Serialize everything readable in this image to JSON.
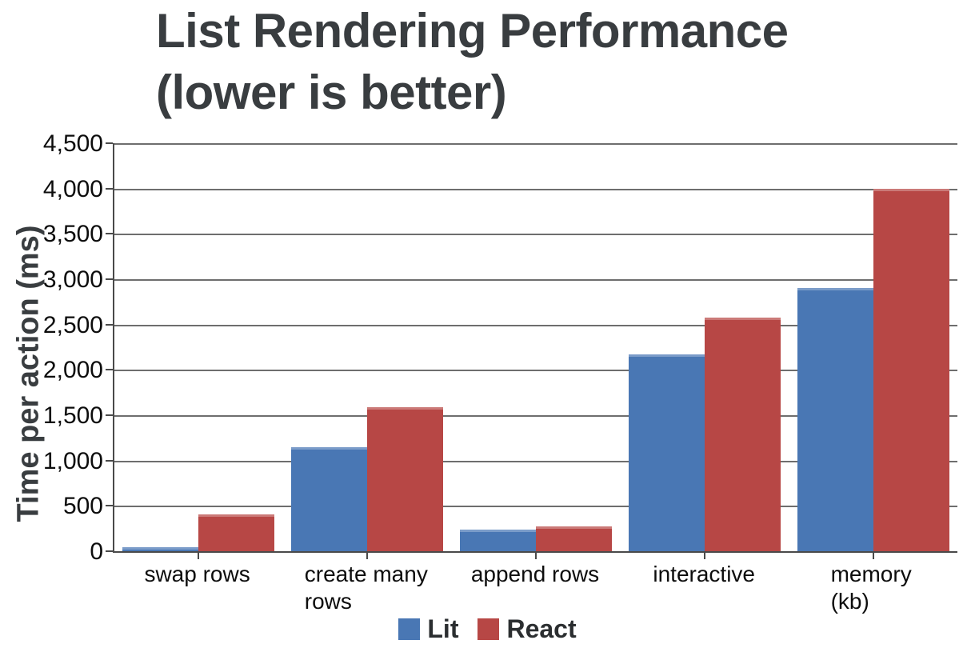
{
  "title": "List Rendering Performance\n(lower is better)",
  "chart_data": {
    "type": "bar",
    "title": "List Rendering Performance (lower is better)",
    "ylabel": "Time per action (ms)",
    "xlabel": "",
    "categories": [
      "swap rows",
      "create many\nrows",
      "append rows",
      "interactive",
      "memory (kb)"
    ],
    "series": [
      {
        "name": "Lit",
        "color": "#4977B4",
        "values": [
          45,
          1150,
          240,
          2175,
          2900
        ]
      },
      {
        "name": "React",
        "color": "#B74745",
        "values": [
          410,
          1590,
          270,
          2575,
          4000
        ]
      }
    ],
    "ylim": [
      0,
      4500
    ],
    "ytick_step": 500,
    "ytick_labels": [
      "0",
      "500",
      "1,000",
      "1,500",
      "2,000",
      "2,500",
      "3,000",
      "3,500",
      "4,000",
      "4,500"
    ],
    "grid": "horizontal",
    "legend_position": "bottom",
    "axis_color": "#4a4a4a",
    "gridline_color": "#6e6e6e",
    "text_color": "#0d0d0d",
    "title_color": "#393d40"
  }
}
